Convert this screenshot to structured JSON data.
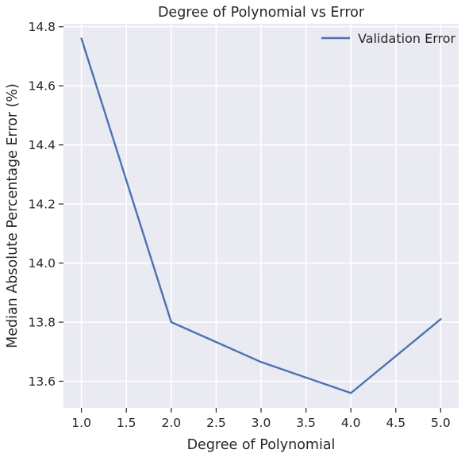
{
  "chart_data": {
    "type": "line",
    "title": "Degree of Polynomial vs Error",
    "xlabel": "Degree of Polynomial",
    "ylabel": "Median Absolute Percentage Error (%)",
    "x": [
      1.0,
      2.0,
      3.0,
      4.0,
      5.0
    ],
    "series": [
      {
        "name": "Validation Error",
        "values": [
          14.76,
          13.8,
          13.665,
          13.56,
          13.81
        ],
        "color": "#4c72b0"
      }
    ],
    "xlim": [
      0.8,
      5.2
    ],
    "ylim": [
      13.51,
      14.81
    ],
    "xticks": [
      1.0,
      1.5,
      2.0,
      2.5,
      3.0,
      3.5,
      4.0,
      4.5,
      5.0
    ],
    "xtick_labels": [
      "1.0",
      "1.5",
      "2.0",
      "2.5",
      "3.0",
      "3.5",
      "4.0",
      "4.5",
      "5.0"
    ],
    "yticks": [
      13.6,
      13.8,
      14.0,
      14.2,
      14.4,
      14.6,
      14.8
    ],
    "ytick_labels": [
      "13.6",
      "13.8",
      "14.0",
      "14.2",
      "14.4",
      "14.6",
      "14.8"
    ],
    "grid": true,
    "legend_position": "top-right",
    "background_color": "#eaeaf2",
    "grid_color": "#ffffff"
  }
}
